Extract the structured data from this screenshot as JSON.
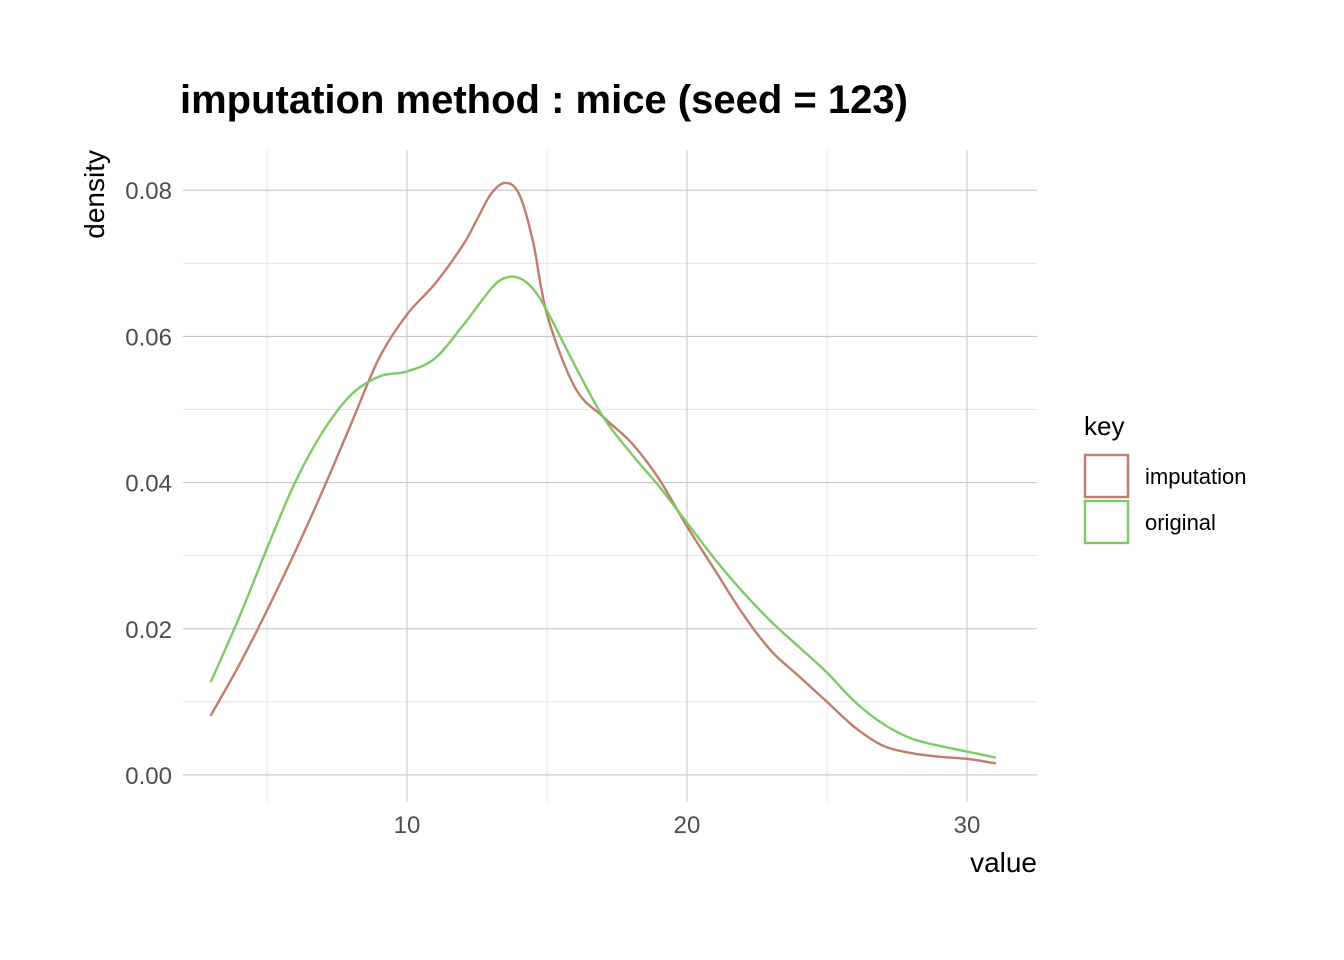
{
  "chart_data": {
    "type": "line",
    "title": "imputation method : mice (seed = 123)",
    "xlabel": "value",
    "ylabel": "density",
    "xlim": [
      2,
      32.5
    ],
    "ylim": [
      -0.0037,
      0.0855
    ],
    "x_ticks": [
      10,
      20,
      30
    ],
    "x_tick_labels": [
      "10",
      "20",
      "30"
    ],
    "x_minor_ticks": [
      5,
      15,
      25
    ],
    "y_ticks": [
      0.0,
      0.02,
      0.04,
      0.06,
      0.08
    ],
    "y_tick_labels": [
      "0.00",
      "0.02",
      "0.04",
      "0.06",
      "0.08"
    ],
    "y_minor_ticks": [
      0.01,
      0.03,
      0.05,
      0.07
    ],
    "grid": true,
    "legend": {
      "title": "key",
      "position": "right"
    },
    "series": [
      {
        "name": "imputation",
        "color": "#c27c6c",
        "x": [
          3,
          4,
          5,
          6,
          7,
          8,
          9,
          10,
          11,
          12,
          12.5,
          13,
          13.5,
          14,
          14.5,
          15,
          16,
          17,
          18,
          19,
          20,
          21,
          22,
          23,
          24,
          25,
          26,
          27,
          28,
          29,
          30,
          31
        ],
        "y": [
          0.0082,
          0.015,
          0.0225,
          0.0305,
          0.039,
          0.048,
          0.057,
          0.063,
          0.0672,
          0.0725,
          0.076,
          0.0795,
          0.081,
          0.0795,
          0.073,
          0.063,
          0.053,
          0.049,
          0.0455,
          0.0405,
          0.034,
          0.028,
          0.022,
          0.017,
          0.0135,
          0.01,
          0.0065,
          0.004,
          0.003,
          0.0025,
          0.0022,
          0.0016
        ]
      },
      {
        "name": "original",
        "color": "#7dcb63",
        "x": [
          3,
          4,
          5,
          6,
          7,
          8,
          9,
          10,
          11,
          12,
          13,
          13.5,
          14,
          14.5,
          15,
          16,
          17,
          18,
          19,
          20,
          21,
          22,
          23,
          24,
          25,
          26,
          27,
          28,
          29,
          30,
          31
        ],
        "y": [
          0.0128,
          0.0215,
          0.031,
          0.04,
          0.047,
          0.052,
          0.0545,
          0.0552,
          0.057,
          0.0615,
          0.0665,
          0.068,
          0.068,
          0.0665,
          0.0635,
          0.056,
          0.049,
          0.044,
          0.0395,
          0.0345,
          0.0295,
          0.025,
          0.021,
          0.0175,
          0.014,
          0.01,
          0.007,
          0.005,
          0.004,
          0.0032,
          0.0024
        ]
      }
    ]
  }
}
